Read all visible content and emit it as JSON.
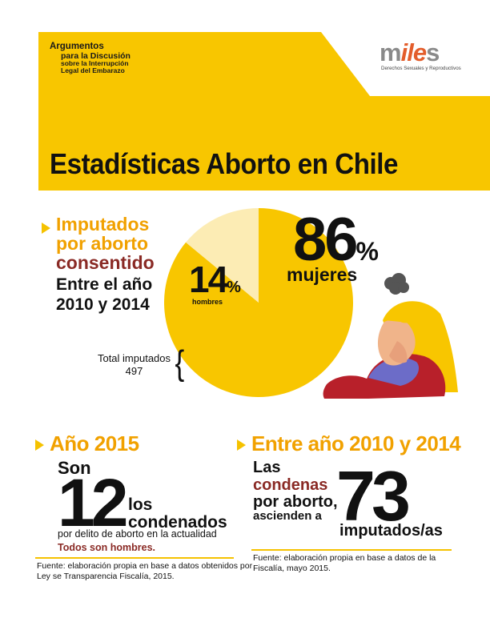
{
  "header": {
    "tagline_1": "Argumentos",
    "tagline_2": "para la Discusión",
    "tagline_3": "sobre la Interrupción",
    "tagline_4": "Legal del Embarazo",
    "title": "Estadísticas Aborto en Chile",
    "background_color": "#f8c600"
  },
  "logo": {
    "m": "m",
    "i": "i",
    "l": "l",
    "e": "e",
    "s": "s",
    "subtitle": "Derechos Sexuales y Reproductivos"
  },
  "section_imputados": {
    "title_line1": "Imputados",
    "title_line2": "por aborto",
    "title_line3": "consentido",
    "period_line1": "Entre el año",
    "period_line2": "2010 y 2014",
    "men_number": "14",
    "men_pct_sign": "%",
    "men_label": "hombres",
    "women_number": "86",
    "women_pct_sign": "%",
    "women_label": "mujeres",
    "total_label": "Total imputados",
    "total_value": "497",
    "brace": "{",
    "pie_shares": {
      "mujeres": 86,
      "hombres": 14
    },
    "colors": {
      "mujeres": "#f8c600",
      "hombres": "#fcecb4"
    }
  },
  "section_2015": {
    "title": "Año 2015",
    "son": "Son",
    "number": "12",
    "los": "los",
    "condenados": "condenados",
    "detail": "por delito de aborto en la actualidad",
    "highlight": "Todos son hombres.",
    "source": "Fuente: elaboración propia en base a datos obtenidos por Ley se Transparencia Fiscalía, 2015."
  },
  "section_2010_2014": {
    "title": "Entre año 2010 y 2014",
    "las": "Las",
    "condenas": "condenas",
    "por_aborto": "por aborto,",
    "ascienden": "ascienden a",
    "number": "73",
    "unit": "imputados/as",
    "source": "Fuente: elaboración propia en base a datos de la Fiscalía, mayo 2015."
  }
}
